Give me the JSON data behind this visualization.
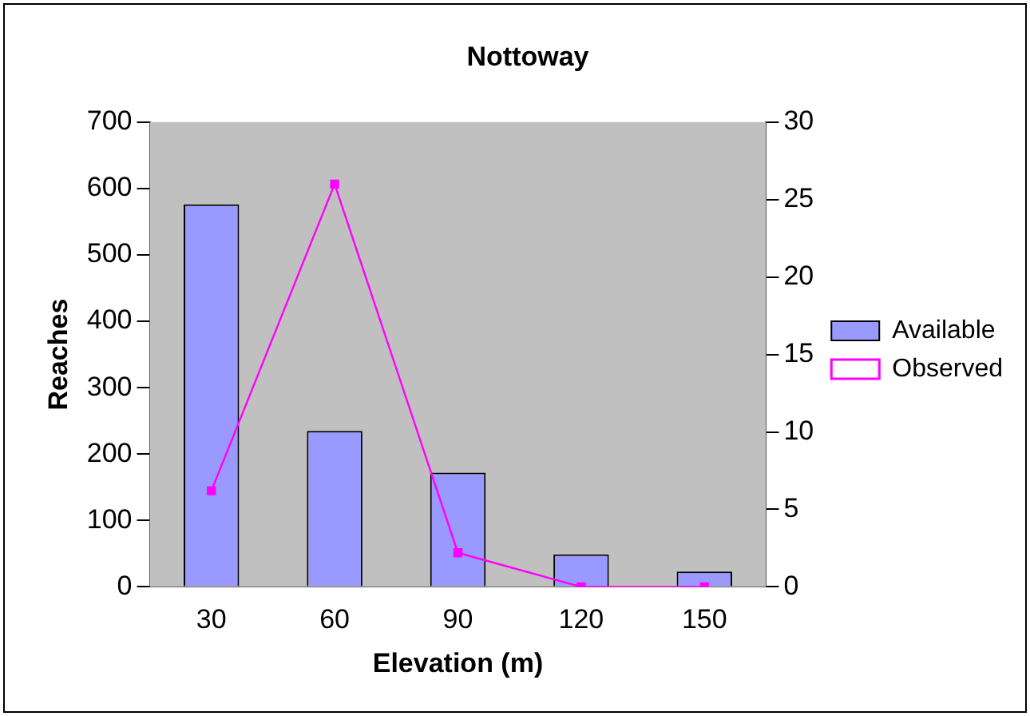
{
  "chart_data": {
    "type": "bar",
    "title": "Nottoway",
    "xlabel": "Elevation (m)",
    "ylabel": "Reaches",
    "categories": [
      "30",
      "60",
      "90",
      "120",
      "150"
    ],
    "series": [
      {
        "name": "Available",
        "color": "#9999ff",
        "values": [
          576,
          235,
          172,
          49,
          23
        ]
      },
      {
        "name": "Observed",
        "type": "line",
        "axis": "y2",
        "color": "#ff00ff",
        "marker": "square",
        "values": [
          6.2,
          26,
          2.2,
          0,
          0
        ]
      }
    ],
    "ylim": [
      0,
      700
    ],
    "yticks": [
      0,
      100,
      200,
      300,
      400,
      500,
      600,
      700
    ],
    "y2lim": [
      0,
      30
    ],
    "y2ticks": [
      0,
      5,
      10,
      15,
      20,
      25,
      30
    ],
    "grid": false,
    "legend": "right"
  }
}
